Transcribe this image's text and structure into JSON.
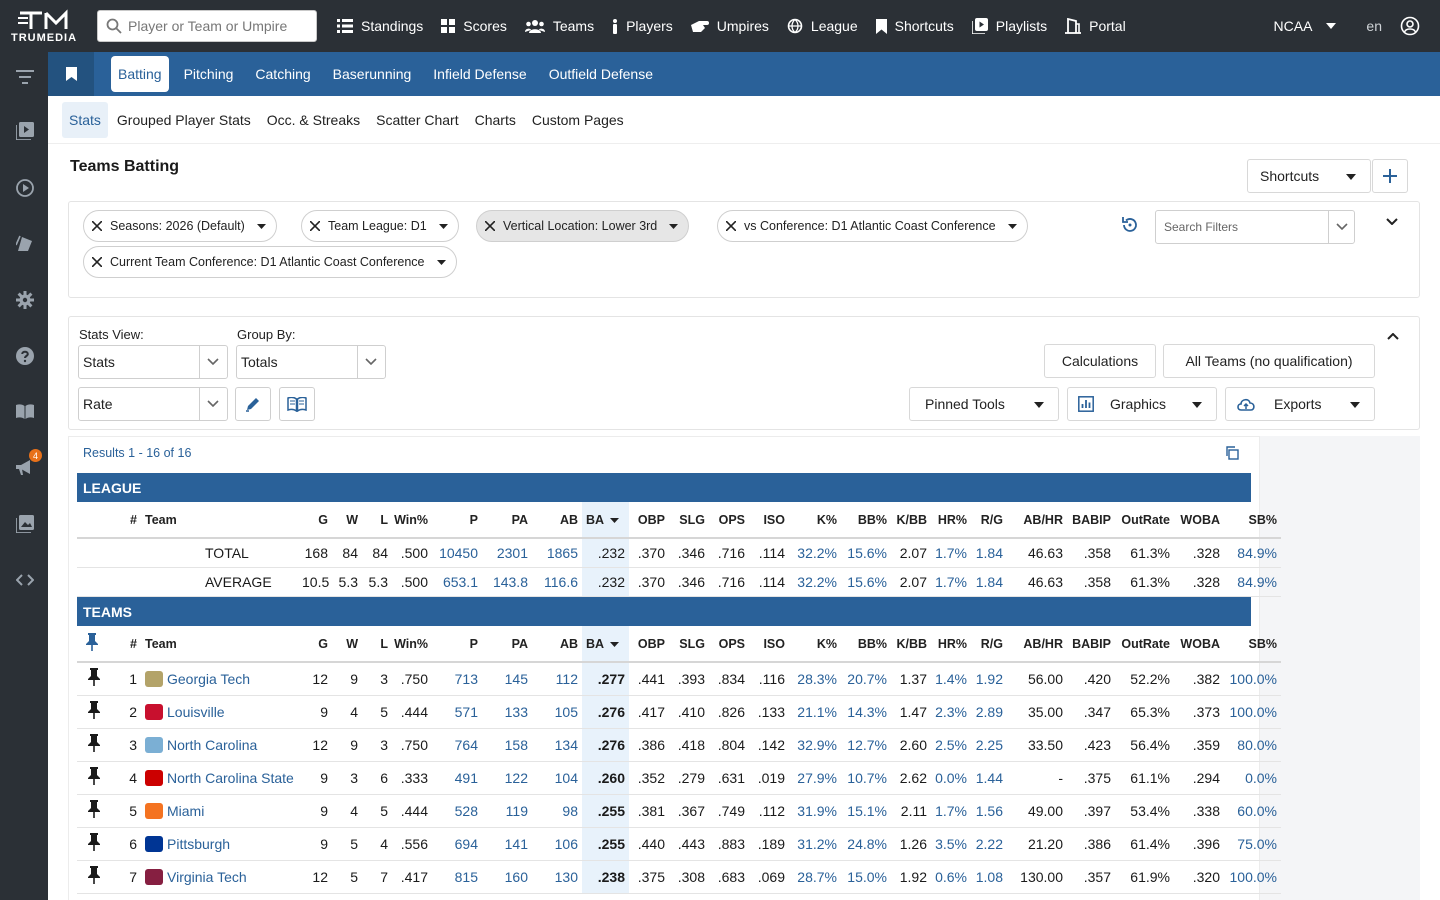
{
  "topbar": {
    "logo_text": "TRUMEDIA",
    "search_placeholder": "Player or Team or Umpire",
    "nav": [
      {
        "label": "Standings",
        "icon": "list-icon"
      },
      {
        "label": "Scores",
        "icon": "grid-icon"
      },
      {
        "label": "Teams",
        "icon": "users-icon"
      },
      {
        "label": "Players",
        "icon": "person-icon"
      },
      {
        "label": "Umpires",
        "icon": "hand-icon"
      },
      {
        "label": "League",
        "icon": "globe-icon"
      },
      {
        "label": "Shortcuts",
        "icon": "bookmark-icon"
      },
      {
        "label": "Playlists",
        "icon": "play-square-icon"
      },
      {
        "label": "Portal",
        "icon": "portal-icon"
      }
    ],
    "league_select": "NCAA",
    "language": "en"
  },
  "sidebar": {
    "notification_count": "4"
  },
  "tabs": [
    "Batting",
    "Pitching",
    "Catching",
    "Baserunning",
    "Infield Defense",
    "Outfield Defense"
  ],
  "subtabs": [
    "Stats",
    "Grouped Player Stats",
    "Occ. & Streaks",
    "Scatter Chart",
    "Charts",
    "Custom Pages"
  ],
  "page_title": "Teams Batting",
  "shortcuts_button": "Shortcuts",
  "filters": [
    "Seasons: 2026 (Default)",
    "Team League: D1",
    "Vertical Location: Lower 3rd",
    "vs Conference: D1 Atlantic Coast Conference",
    "Current Team Conference: D1 Atlantic Coast Conference"
  ],
  "search_filters_placeholder": "Search Filters",
  "controls": {
    "stats_view_label": "Stats View:",
    "stats_view_value": "Stats",
    "group_by_label": "Group By:",
    "group_by_value": "Totals",
    "rate_value": "Rate",
    "calculations": "Calculations",
    "qualification": "All Teams (no qualification)",
    "pinned_tools": "Pinned Tools",
    "graphics": "Graphics",
    "exports": "Exports"
  },
  "results_count": "Results 1 - 16 of 16",
  "league_section": {
    "title": "LEAGUE",
    "columns": [
      "#",
      "Team",
      "G",
      "W",
      "L",
      "Win%",
      "P",
      "PA",
      "AB",
      "BA",
      "OBP",
      "SLG",
      "OPS",
      "ISO",
      "K%",
      "BB%",
      "K/BB",
      "HR%",
      "R/G",
      "AB/HR",
      "BABIP",
      "OutRate",
      "WOBA",
      "SB%"
    ],
    "rows": [
      [
        "",
        "TOTAL",
        "168",
        "84",
        "84",
        ".500",
        "10450",
        "2301",
        "1865",
        ".232",
        ".370",
        ".346",
        ".716",
        ".114",
        "32.2%",
        "15.6%",
        "2.07",
        "1.7%",
        "1.84",
        "46.63",
        ".358",
        "61.3%",
        ".328",
        "84.9%"
      ],
      [
        "",
        "AVERAGE",
        "10.5",
        "5.3",
        "5.3",
        ".500",
        "653.1",
        "143.8",
        "116.6",
        ".232",
        ".370",
        ".346",
        ".716",
        ".114",
        "32.2%",
        "15.6%",
        "2.07",
        "1.7%",
        "1.84",
        "46.63",
        ".358",
        "61.3%",
        ".328",
        "84.9%"
      ]
    ]
  },
  "teams_section": {
    "title": "TEAMS",
    "rows": [
      [
        "1",
        "Georgia Tech",
        "12",
        "9",
        "3",
        ".750",
        "713",
        "145",
        "112",
        ".277",
        ".441",
        ".393",
        ".834",
        ".116",
        "28.3%",
        "20.7%",
        "1.37",
        "1.4%",
        "1.92",
        "56.00",
        ".420",
        "52.2%",
        ".382",
        "100.0%"
      ],
      [
        "2",
        "Louisville",
        "9",
        "4",
        "5",
        ".444",
        "571",
        "133",
        "105",
        ".276",
        ".417",
        ".410",
        ".826",
        ".133",
        "21.1%",
        "14.3%",
        "1.47",
        "2.3%",
        "2.89",
        "35.00",
        ".347",
        "65.3%",
        ".373",
        "100.0%"
      ],
      [
        "3",
        "North Carolina",
        "12",
        "9",
        "3",
        ".750",
        "764",
        "158",
        "134",
        ".276",
        ".386",
        ".418",
        ".804",
        ".142",
        "32.9%",
        "12.7%",
        "2.60",
        "2.5%",
        "2.25",
        "33.50",
        ".423",
        "56.4%",
        ".359",
        "80.0%"
      ],
      [
        "4",
        "North Carolina State",
        "9",
        "3",
        "6",
        ".333",
        "491",
        "122",
        "104",
        ".260",
        ".352",
        ".279",
        ".631",
        ".019",
        "27.9%",
        "10.7%",
        "2.62",
        "0.0%",
        "1.44",
        "-",
        ".375",
        "61.1%",
        ".294",
        "0.0%"
      ],
      [
        "5",
        "Miami",
        "9",
        "4",
        "5",
        ".444",
        "528",
        "119",
        "98",
        ".255",
        ".381",
        ".367",
        ".749",
        ".112",
        "31.9%",
        "15.1%",
        "2.11",
        "1.7%",
        "1.56",
        "49.00",
        ".397",
        "53.4%",
        ".338",
        "60.0%"
      ],
      [
        "6",
        "Pittsburgh",
        "9",
        "5",
        "4",
        ".556",
        "694",
        "141",
        "106",
        ".255",
        ".440",
        ".443",
        ".883",
        ".189",
        "31.2%",
        "24.8%",
        "1.26",
        "3.5%",
        "2.22",
        "21.20",
        ".386",
        "61.4%",
        ".396",
        "75.0%"
      ],
      [
        "7",
        "Virginia Tech",
        "12",
        "5",
        "7",
        ".417",
        "815",
        "160",
        "130",
        ".238",
        ".375",
        ".308",
        ".683",
        ".069",
        "28.7%",
        "15.0%",
        "1.92",
        "0.6%",
        "1.08",
        "130.00",
        ".357",
        "61.9%",
        ".320",
        "100.0%"
      ]
    ],
    "team_colors": [
      "#b3a369",
      "#c8102e",
      "#7bafd4",
      "#cc0000",
      "#f47321",
      "#003594",
      "#861f41"
    ]
  }
}
